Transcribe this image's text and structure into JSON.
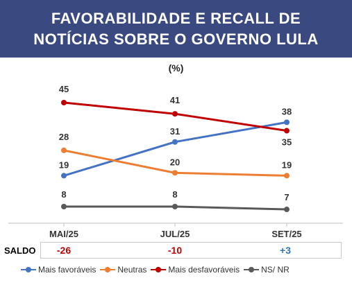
{
  "title_lines": [
    "FAVORABILIDADE E RECALL DE",
    "NOTÍCIAS SOBRE O GOVERNO LULA"
  ],
  "unit_label": "(%)",
  "colors": {
    "header_bg": "#3a4a80",
    "negative": "#c00000",
    "positive": "#2e75b6"
  },
  "chart_data": {
    "type": "line",
    "categories": [
      "MAI/25",
      "JUL/25",
      "SET/25"
    ],
    "ylim": [
      0,
      50
    ],
    "grid": false,
    "legend_position": "bottom",
    "series": [
      {
        "name": "Mais favoráveis",
        "color": "#4472c4",
        "values": [
          19,
          31,
          38
        ]
      },
      {
        "name": "Neutras",
        "color": "#ed7d31",
        "values": [
          28,
          20,
          19
        ]
      },
      {
        "name": "Mais desfavoráveis",
        "color": "#c00000",
        "values": [
          45,
          41,
          35
        ]
      },
      {
        "name": "NS/ NR",
        "color": "#595959",
        "values": [
          8,
          8,
          7
        ]
      }
    ]
  },
  "saldo": {
    "label": "SALDO",
    "values": [
      "-26",
      "-10",
      "+3"
    ]
  }
}
